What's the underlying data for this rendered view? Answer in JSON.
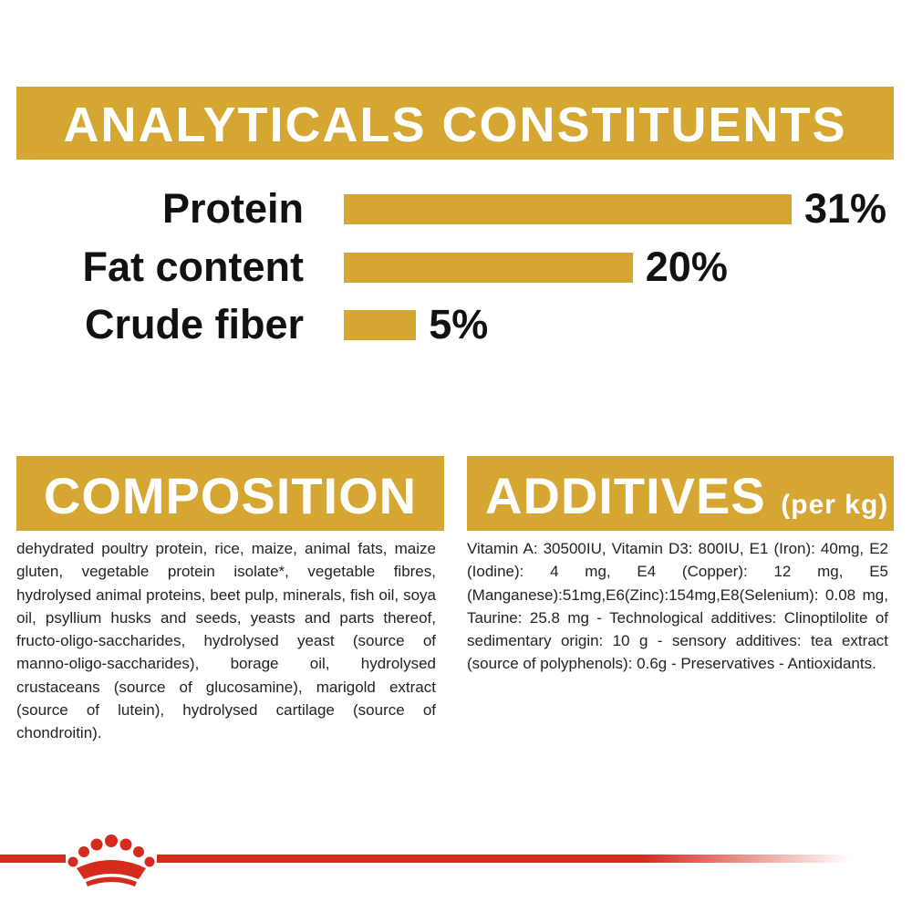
{
  "chart_data": {
    "type": "bar",
    "title": "ANALYTICALS CONSTITUENTS",
    "categories": [
      "Protein",
      "Fat content",
      "Crude fiber"
    ],
    "values": [
      31,
      20,
      5
    ],
    "value_labels": [
      "31%",
      "20%",
      "5%"
    ],
    "color": "#d6a632"
  },
  "composition": {
    "title": "COMPOSITION",
    "text": "dehydrated poultry protein, rice, maize, animal fats, maize gluten, vegetable protein isolate*, vegetable fibres, hydrolysed animal proteins, beet pulp, minerals, fish oil, soya oil, psyllium husks and seeds, yeasts and parts thereof, fructo-oligo-saccharides, hydrolysed yeast (source of manno-oligo-saccharides), borage oil, hydrolysed crustaceans (source of glucosamine), marigold extract (source of lutein), hydrolysed cartilage (source of chondroitin)."
  },
  "additives": {
    "title": "ADDITIVES",
    "subtitle": "(per kg)",
    "text": "Vitamin A: 30500IU, Vitamin D3: 800IU, E1 (Iron): 40mg, E2 (Iodine): 4 mg, E4 (Copper): 12 mg, E5 (Manganese):51mg,E6(Zinc):154mg,E8(Selenium): 0.08 mg, Taurine: 25.8 mg - Technological additives: Clinoptilolite of sedimentary origin: 10 g - sensory additives: tea extract (source of polyphenols): 0.6g - Preservatives - Antioxidants."
  }
}
